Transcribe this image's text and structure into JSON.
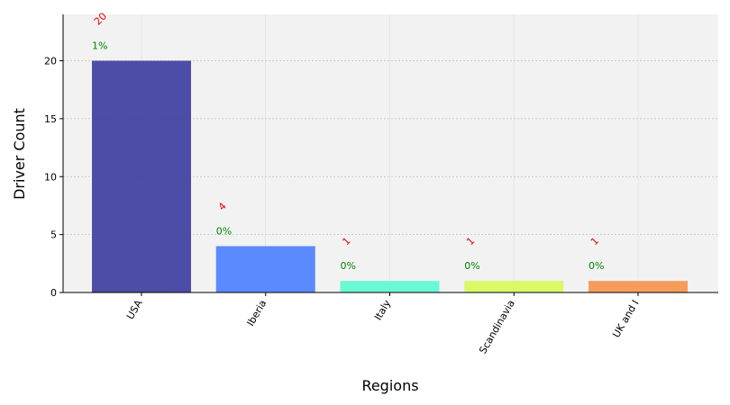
{
  "chart_data": {
    "type": "bar",
    "categories": [
      "USA",
      "Iberia",
      "Italy",
      "Scandinavia",
      "UK and I"
    ],
    "values": [
      20,
      4,
      1,
      1,
      1
    ],
    "percent_labels": [
      "1%",
      "0%",
      "0%",
      "0%",
      "0%"
    ],
    "value_labels": [
      "20",
      "4",
      "1",
      "1",
      "1"
    ],
    "colors": [
      "#3b3b9e",
      "#4a7dff",
      "#5cf8d2",
      "#d8f85a",
      "#f6924a"
    ],
    "xlabel": "Regions",
    "ylabel": "Driver Count",
    "ylim": [
      0,
      24
    ],
    "yticks": [
      "0",
      "5",
      "10",
      "15",
      "20"
    ],
    "grid": true,
    "value_label_color": "#ee0000",
    "percent_label_color": "#008800",
    "plot_background": "#f2f2f2"
  }
}
